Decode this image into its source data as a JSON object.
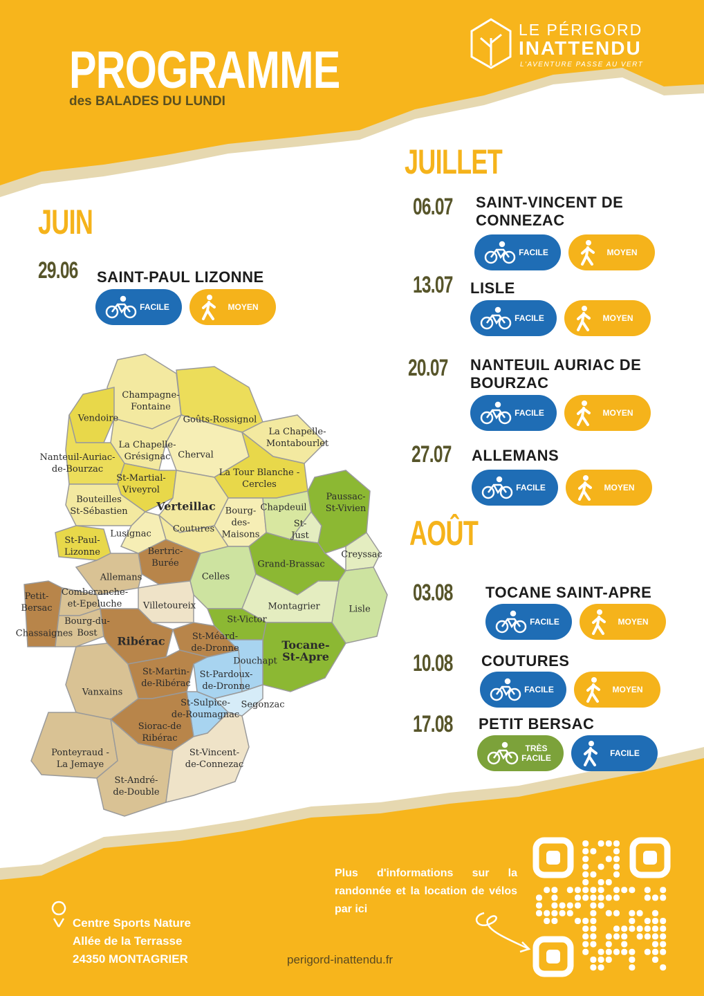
{
  "header": {
    "title": "PROGRAMME",
    "subtitle": "des BALADES DU LUNDI"
  },
  "logo": {
    "line1": "LE PÉRIGORD",
    "line2": "INATTENDU",
    "tagline": "L'AVENTURE PASSE AU VERT"
  },
  "months": [
    {
      "name": "JUIN",
      "outings": [
        {
          "date": "29.06",
          "place": "SAINT-PAUL LIZONNE",
          "badges": [
            {
              "label": "FACILE",
              "icon": "bike",
              "color": "#1f6db5"
            },
            {
              "label": "MOYEN",
              "icon": "walk",
              "color": "#f5b31b"
            }
          ]
        }
      ]
    },
    {
      "name": "JUILLET",
      "outings": [
        {
          "date": "06.07",
          "place": "SAINT-VINCENT DE CONNEZAC",
          "badges": [
            {
              "label": "FACILE",
              "icon": "bike",
              "color": "#1f6db5"
            },
            {
              "label": "MOYEN",
              "icon": "walk",
              "color": "#f5b31b"
            }
          ]
        },
        {
          "date": "13.07",
          "place": "LISLE",
          "badges": [
            {
              "label": "FACILE",
              "icon": "bike",
              "color": "#1f6db5"
            },
            {
              "label": "MOYEN",
              "icon": "walk",
              "color": "#f5b31b"
            }
          ]
        },
        {
          "date": "20.07",
          "place": "NANTEUIL AURIAC DE BOURZAC",
          "badges": [
            {
              "label": "FACILE",
              "icon": "bike",
              "color": "#1f6db5"
            },
            {
              "label": "MOYEN",
              "icon": "walk",
              "color": "#f5b31b"
            }
          ]
        },
        {
          "date": "27.07",
          "place": "ALLEMANS",
          "badges": [
            {
              "label": "FACILE",
              "icon": "bike",
              "color": "#1f6db5"
            },
            {
              "label": "MOYEN",
              "icon": "walk",
              "color": "#f5b31b"
            }
          ]
        }
      ]
    },
    {
      "name": "AOÛT",
      "outings": [
        {
          "date": "03.08",
          "place": "TOCANE SAINT-APRE",
          "badges": [
            {
              "label": "FACILE",
              "icon": "bike",
              "color": "#1f6db5"
            },
            {
              "label": "MOYEN",
              "icon": "walk",
              "color": "#f5b31b"
            }
          ]
        },
        {
          "date": "10.08",
          "place": "COUTURES",
          "badges": [
            {
              "label": "FACILE",
              "icon": "bike",
              "color": "#1f6db5"
            },
            {
              "label": "MOYEN",
              "icon": "walk",
              "color": "#f5b31b"
            }
          ]
        },
        {
          "date": "17.08",
          "place": "PETIT BERSAC",
          "badges": [
            {
              "label": "TRÈS\nFACILE",
              "icon": "bike",
              "color": "#7ca23a"
            },
            {
              "label": "FACILE",
              "icon": "walk",
              "color": "#1f6db5"
            }
          ]
        }
      ]
    }
  ],
  "map": {
    "labels": [
      "Champagne-\nFontaine",
      "Vendoire",
      "Goûts-Rossignol",
      "La Chapelle-\nMontabourlet",
      "La Chapelle-\nGrésignac",
      "Cherval",
      "Nanteuil-Auriac-\nde-Bourzac",
      "La Tour Blanche -\nCercles",
      "St-Martial-\nViveyrol",
      "Verteillac",
      "Bouteilles\nSt-Sébastien",
      "Bourg-\ndes-\nMaisons",
      "Chapdeuil",
      "St-\nJust",
      "Paussac-\nSt-Vivien",
      "Coutures",
      "Lusignac",
      "St-Paul-\nLizonne",
      "Bertric-\nBurée",
      "Creyssac",
      "Grand-Brassac",
      "Celles",
      "Allemans",
      "Comberanche-\net-Epeluche",
      "Petit-\nBersac",
      "Villetoureix",
      "Montagrier",
      "Lisle",
      "Bourg-du-\nBost",
      "Chassaignes",
      "St-Victor",
      "Ribérac",
      "St-Méard-\nde-Dronne",
      "Tocane-\nSt-Apre",
      "Douchapt",
      "St-Martin-\nde-Ribérac",
      "St-Pardoux-\nde-Dronne",
      "Vanxains",
      "St-Sulpice-\nde-Roumagnac",
      "Segonzac",
      "Siorac-de\nRibérac",
      "Ponteyraud -\nLa Jemaye",
      "St-Vincent-\nde-Connezac",
      "St-André-\nde-Double"
    ]
  },
  "footer": {
    "address": [
      "Centre Sports Nature",
      "Allée de la Terrasse",
      "24350 MONTAGRIER"
    ],
    "info": "Plus d'informations sur la randonnée et la location de vélos par ici",
    "website": "perigord-inattendu.fr"
  }
}
